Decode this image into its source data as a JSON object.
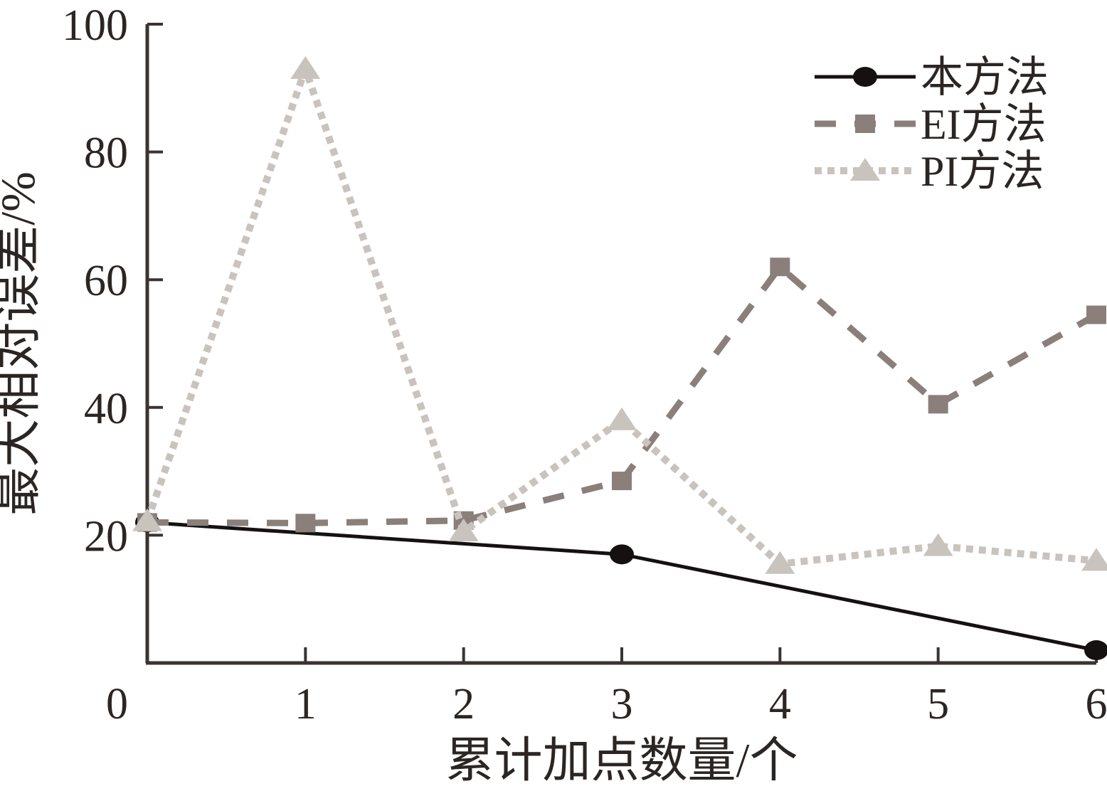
{
  "chart_data": {
    "type": "line",
    "title": "",
    "xlabel": "累计加点数量/个",
    "ylabel": "最大相对误差/%",
    "xlim": [
      0,
      6
    ],
    "ylim": [
      0,
      100
    ],
    "grid": false,
    "legend_position": "top-right",
    "origin_label": "0",
    "x_ticks": {
      "values": [
        1,
        2,
        3,
        4,
        5,
        6
      ],
      "labels": [
        "1",
        "2",
        "3",
        "4",
        "5",
        "6"
      ]
    },
    "y_ticks": {
      "values": [
        20,
        40,
        60,
        80,
        100
      ],
      "labels": [
        "20",
        "40",
        "60",
        "80",
        "100"
      ]
    },
    "axis_color": "#3a3331",
    "text_color": "#2b2523",
    "series": [
      {
        "id": "this-method",
        "name": "本方法",
        "color": "#151110",
        "line_style": "solid",
        "marker": "circle",
        "x": [
          0,
          3,
          6
        ],
        "y": [
          22,
          17,
          2
        ]
      },
      {
        "id": "ei-method",
        "name": "EI方法",
        "color": "#8a7f7a",
        "line_style": "dashed",
        "marker": "square",
        "x": [
          0,
          1,
          2,
          3,
          4,
          5,
          6
        ],
        "y": [
          22,
          21.9,
          22.3,
          28.5,
          62,
          40.5,
          54.5
        ]
      },
      {
        "id": "pi-method",
        "name": "PI方法",
        "color": "#c9c3be",
        "line_style": "dotted",
        "marker": "triangle",
        "x": [
          0,
          1,
          2,
          3,
          4,
          5,
          6
        ],
        "y": [
          22.2,
          93,
          20.6,
          38,
          15.5,
          18.3,
          16
        ]
      }
    ]
  }
}
